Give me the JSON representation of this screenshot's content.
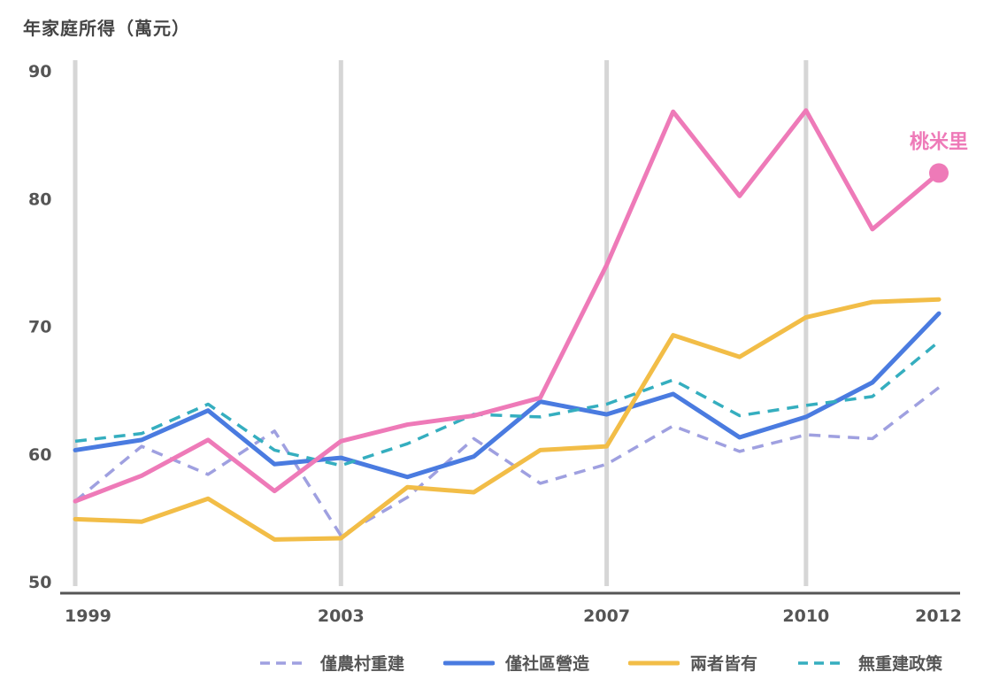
{
  "colors": {
    "series_0": "#9fa0e0",
    "series_1": "#4a7be0",
    "series_2": "#f2bd47",
    "series_3": "#35aebf",
    "series_4": "#ee7ab8",
    "gridline": "#d6d6d6",
    "axis": "#555555",
    "text": "#555555"
  },
  "chart_data": {
    "type": "line",
    "title": "年家庭所得（萬元）",
    "ylabel": "年家庭所得（萬元）",
    "xlabel": "",
    "ylim": [
      50,
      90
    ],
    "xlim": [
      1999,
      2012
    ],
    "yticks": [
      50,
      60,
      70,
      80,
      90
    ],
    "xticks": [
      "1999",
      "2003",
      "2007",
      "2010",
      "2012"
    ],
    "vertical_gridlines_at": [
      1999,
      2003,
      2007,
      2010
    ],
    "x": [
      1999,
      2000,
      2001,
      2002,
      2003,
      2004,
      2005,
      2006,
      2007,
      2008,
      2009,
      2010,
      2011,
      2012
    ],
    "series": [
      {
        "name": "僅農村重建",
        "style": "dashed",
        "values": [
          56.3,
          60.6,
          58.4,
          61.8,
          53.6,
          56.6,
          61.2,
          57.7,
          59.2,
          62.2,
          60.2,
          61.5,
          61.2,
          65.2
        ]
      },
      {
        "name": "僅社區營造",
        "style": "solid",
        "values": [
          60.3,
          61.1,
          63.4,
          59.2,
          59.7,
          58.2,
          59.8,
          64.1,
          63.1,
          64.7,
          61.3,
          62.9,
          65.6,
          71.0
        ]
      },
      {
        "name": "兩者皆有",
        "style": "solid",
        "values": [
          54.9,
          54.7,
          56.5,
          53.3,
          53.4,
          57.4,
          57.0,
          60.3,
          60.6,
          69.3,
          67.6,
          70.7,
          71.9,
          72.1
        ]
      },
      {
        "name": "無重建政策",
        "style": "dashed",
        "values": [
          61.0,
          61.6,
          63.9,
          60.3,
          59.1,
          60.8,
          63.1,
          62.9,
          63.9,
          65.8,
          63.0,
          63.8,
          64.5,
          68.8
        ]
      },
      {
        "name": "桃米里",
        "style": "solid",
        "in_legend": false,
        "values": [
          56.3,
          58.3,
          61.1,
          57.1,
          61.0,
          62.3,
          63.0,
          64.4,
          74.8,
          86.8,
          80.2,
          86.9,
          77.6,
          82.0
        ]
      }
    ],
    "annotations": [
      {
        "text": "桃米里",
        "series": "桃米里",
        "at_x": 2012
      }
    ],
    "legend": [
      "僅農村重建",
      "僅社區營造",
      "兩者皆有",
      "無重建政策"
    ],
    "legend_position": "bottom"
  }
}
